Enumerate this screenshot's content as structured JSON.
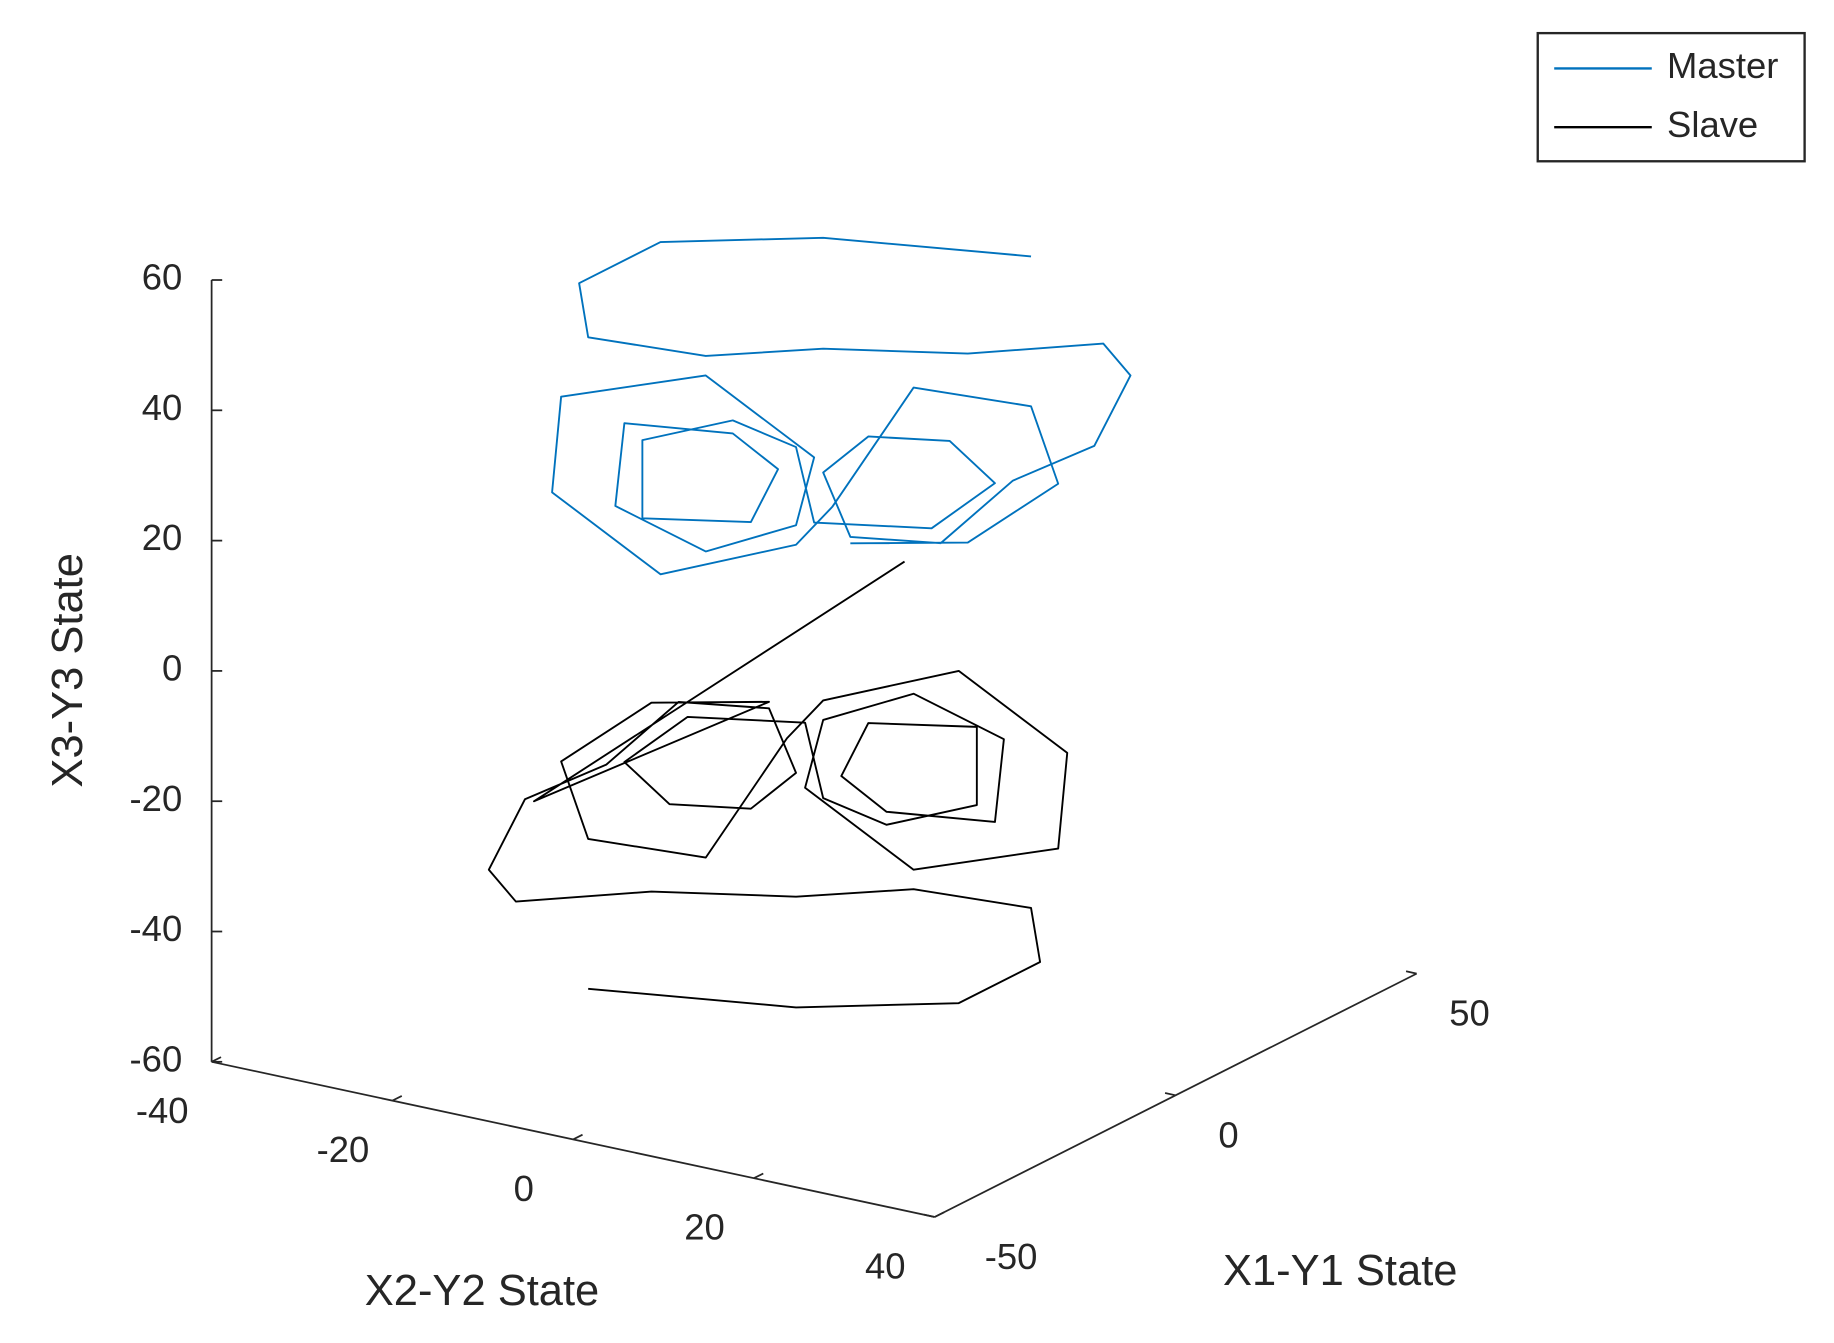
{
  "chart_data": {
    "type": "line3d",
    "xlabel": "X1-Y1 State",
    "ylabel": "X2-Y2 State",
    "zlabel": "X3-Y3 State",
    "xlim": [
      -50,
      50
    ],
    "ylim": [
      -40,
      40
    ],
    "zlim": [
      -60,
      60
    ],
    "xticks": [
      -50,
      0,
      50
    ],
    "yticks": [
      -40,
      -20,
      0,
      20,
      40
    ],
    "zticks": [
      -60,
      -40,
      -20,
      0,
      20,
      40,
      60
    ],
    "legend": "northeast",
    "series": [
      {
        "name": "Master",
        "color": "#0072BD",
        "x": [
          0,
          0,
          0,
          0,
          0,
          0,
          0,
          0,
          0,
          0,
          0,
          0,
          0,
          0,
          0,
          0,
          0,
          0,
          0,
          0,
          0,
          0,
          0,
          0,
          0,
          0,
          0,
          0,
          0,
          0,
          0,
          0,
          0,
          0,
          0,
          0,
          0,
          0,
          0,
          0,
          0,
          0,
          0
        ],
        "y": [
          24,
          1,
          -17,
          -26,
          -25,
          -12,
          1,
          17,
          32,
          35,
          31,
          22,
          14,
          4,
          1,
          6,
          15,
          20,
          13,
          0,
          -2,
          -9,
          -19,
          -19,
          -7,
          -4,
          -9,
          -21,
          -22,
          -12,
          -2,
          0,
          -12,
          -28,
          -29,
          -17,
          -2,
          2,
          11,
          24,
          27,
          17,
          4
        ],
        "z": [
          64,
          60,
          54,
          45,
          37,
          38,
          43,
          47,
          53,
          49,
          37,
          29,
          17,
          15,
          24,
          31,
          33,
          28,
          19,
          16,
          27,
          29,
          23,
          11,
          14,
          23,
          27,
          25,
          12,
          8,
          15,
          26,
          35,
          27,
          12,
          3,
          12,
          19,
          40,
          41,
          30,
          18,
          14
        ]
      },
      {
        "name": "Slave",
        "color": "#000000",
        "x": [
          0,
          0,
          0,
          0,
          0,
          0,
          0,
          0,
          0,
          0,
          0,
          0,
          0,
          0,
          0,
          0,
          0,
          0,
          0,
          0,
          0,
          0,
          0,
          0,
          0,
          0,
          0,
          0,
          0,
          0,
          0,
          0,
          0,
          0,
          0,
          0,
          0,
          0,
          0,
          0,
          0,
          0,
          0,
          0,
          0
        ],
        "y": [
          10,
          -31,
          -5,
          -18,
          -28,
          -25,
          -12,
          -3,
          1,
          16,
          28,
          27,
          11,
          -1,
          1,
          11,
          21,
          20,
          8,
          3,
          6,
          18,
          18,
          8,
          1,
          -1,
          -14,
          -21,
          -16,
          -7,
          -2,
          -5,
          -15,
          -23,
          -32,
          -36,
          -33,
          -18,
          -2,
          11,
          24,
          25,
          16,
          -2,
          -25
        ],
        "z": [
          13,
          -36,
          -13,
          -17,
          -29,
          -40,
          -39,
          -18,
          -11,
          -2,
          -11,
          -26,
          -34,
          -25,
          -14,
          -7,
          -11,
          -24,
          -26,
          -22,
          -13,
          -10,
          -22,
          -28,
          -26,
          -15,
          -18,
          -27,
          -32,
          -30,
          -23,
          -14,
          -16,
          -28,
          -36,
          -48,
          -52,
          -46,
          -42,
          -37,
          -36,
          -44,
          -53,
          -59,
          -63
        ]
      }
    ]
  }
}
